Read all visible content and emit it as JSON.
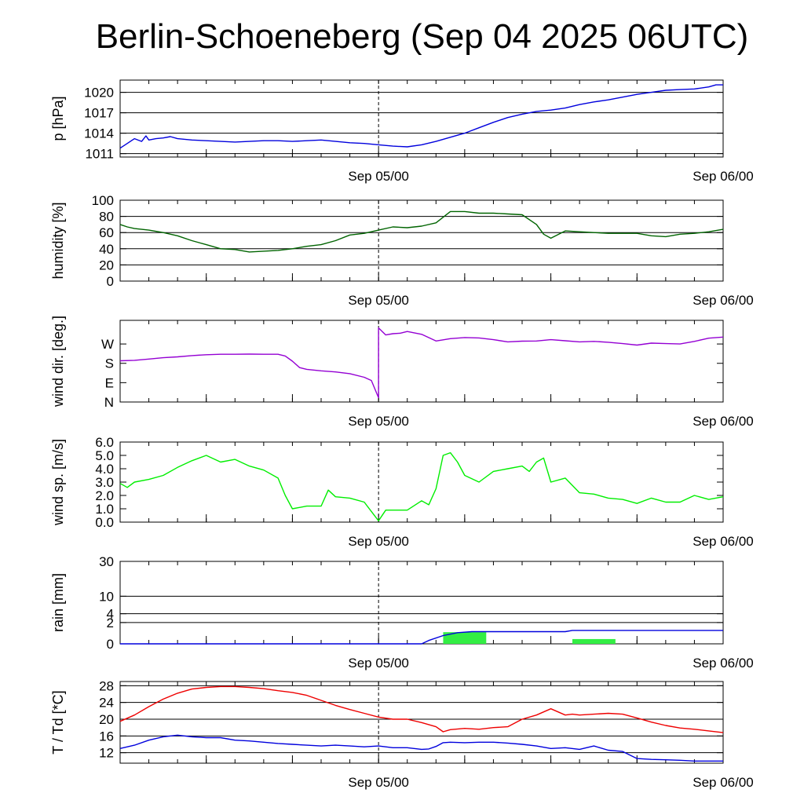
{
  "title": "Berlin-Schoeneberg (Sep 04 2025 06UTC)",
  "colors": {
    "pressure": "#0000dd",
    "humidity": "#006400",
    "wind_dir": "#9400d3",
    "wind_speed": "#00ee00",
    "rain_bar": "#33ee44",
    "rain_line": "#0000dd",
    "temperature": "#ee0000",
    "dewpoint": "#0000dd",
    "gridline": "#000000",
    "now_marker": "#000000"
  },
  "time_axis": {
    "start_hours": 0,
    "end_hours": 42,
    "now_hours": 18,
    "tick_labels": [
      {
        "hours": 18,
        "label": "Sep 05/00"
      },
      {
        "hours": 42,
        "label": "Sep 06/00"
      }
    ]
  },
  "chart_data": [
    {
      "type": "line",
      "id": "pressure",
      "ylabel": "p [hPa]",
      "ylim": [
        1010.5,
        1021.8
      ],
      "yticks": [
        {
          "value": 1011,
          "label": "1011"
        },
        {
          "value": 1014,
          "label": "1014"
        },
        {
          "value": 1017,
          "label": "1017"
        },
        {
          "value": 1020,
          "label": "1020"
        }
      ],
      "grid": true,
      "series": [
        {
          "color_key": "pressure",
          "x": [
            0,
            0.5,
            1,
            1.5,
            1.8,
            2,
            2.5,
            3,
            3.5,
            4,
            5,
            6,
            7,
            8,
            9,
            10,
            11,
            12,
            13,
            14,
            15,
            16,
            17,
            18,
            19,
            20,
            21,
            22,
            23,
            24,
            25,
            26,
            27,
            28,
            29,
            30,
            31,
            32,
            33,
            34,
            35,
            36,
            37,
            38,
            39,
            40,
            41,
            41.5,
            42
          ],
          "y": [
            1011.8,
            1012.5,
            1013.2,
            1012.8,
            1013.6,
            1013.0,
            1013.2,
            1013.3,
            1013.5,
            1013.2,
            1013.0,
            1012.9,
            1012.8,
            1012.7,
            1012.8,
            1012.9,
            1012.9,
            1012.8,
            1012.9,
            1013.0,
            1012.8,
            1012.6,
            1012.5,
            1012.3,
            1012.1,
            1012.0,
            1012.3,
            1012.8,
            1013.4,
            1014.0,
            1014.8,
            1015.6,
            1016.3,
            1016.8,
            1017.2,
            1017.4,
            1017.7,
            1018.2,
            1018.6,
            1018.9,
            1019.3,
            1019.7,
            1020.0,
            1020.3,
            1020.4,
            1020.5,
            1020.8,
            1021.1,
            1021.1
          ]
        }
      ]
    },
    {
      "type": "line",
      "id": "humidity",
      "ylabel": "humidity [%]",
      "ylim": [
        0,
        100
      ],
      "yticks": [
        {
          "value": 0,
          "label": "0"
        },
        {
          "value": 20,
          "label": "20"
        },
        {
          "value": 40,
          "label": "40"
        },
        {
          "value": 60,
          "label": "60"
        },
        {
          "value": 80,
          "label": "80"
        },
        {
          "value": 100,
          "label": "100"
        }
      ],
      "grid": true,
      "series": [
        {
          "color_key": "humidity",
          "x": [
            0,
            0.5,
            1,
            2,
            3,
            4,
            5,
            6,
            7,
            8,
            9,
            10,
            11,
            12,
            13,
            14,
            15,
            16,
            17,
            18,
            19,
            20,
            21,
            22,
            23,
            24,
            25,
            26,
            27,
            28,
            29,
            29.5,
            30,
            31,
            32,
            33,
            34,
            35,
            36,
            37,
            38,
            39,
            40,
            41,
            42
          ],
          "y": [
            70,
            67,
            65,
            63,
            60,
            56,
            50,
            45,
            40,
            39,
            36,
            37,
            38,
            40,
            43,
            45,
            50,
            57,
            59,
            63,
            67,
            66,
            68,
            72,
            86,
            86,
            84,
            84,
            83,
            82,
            70,
            58,
            53,
            62,
            61,
            60,
            59,
            59,
            59,
            56,
            55,
            58,
            59,
            61,
            64
          ]
        }
      ]
    },
    {
      "type": "line",
      "id": "wind_direction",
      "ylabel": "wind dir. [deg.]",
      "ylim": [
        0,
        380
      ],
      "yticks": [
        {
          "value": 0,
          "label": "N"
        },
        {
          "value": 90,
          "label": "E"
        },
        {
          "value": 180,
          "label": "S"
        },
        {
          "value": 270,
          "label": "W"
        }
      ],
      "grid": false,
      "series": [
        {
          "color_key": "wind_dir",
          "x": [
            0,
            1,
            2,
            3,
            4,
            5,
            6,
            7,
            8,
            9,
            10,
            11,
            11.5,
            12,
            12.5,
            13,
            14,
            15,
            16,
            17,
            17.5,
            18,
            18.0,
            18.5,
            19,
            19.5,
            20,
            21,
            22,
            23,
            24,
            25,
            26,
            27,
            28,
            29,
            30,
            31,
            32,
            33,
            34,
            35,
            36,
            37,
            38,
            39,
            40,
            41,
            42
          ],
          "y": [
            192,
            194,
            200,
            206,
            210,
            216,
            220,
            222,
            222,
            223,
            222,
            222,
            214,
            190,
            160,
            152,
            145,
            140,
            132,
            115,
            100,
            20,
            345,
            312,
            318,
            320,
            328,
            315,
            284,
            295,
            300,
            298,
            290,
            280,
            283,
            284,
            290,
            285,
            280,
            282,
            278,
            272,
            265,
            274,
            272,
            270,
            282,
            297,
            302
          ]
        }
      ]
    },
    {
      "type": "line",
      "id": "wind_speed",
      "ylabel": "wind sp. [m/s]",
      "ylim": [
        0,
        6.0
      ],
      "yticks": [
        {
          "value": 0,
          "label": "0.0"
        },
        {
          "value": 1,
          "label": "1.0"
        },
        {
          "value": 2,
          "label": "2.0"
        },
        {
          "value": 3,
          "label": "3.0"
        },
        {
          "value": 4,
          "label": "4.0"
        },
        {
          "value": 5,
          "label": "5.0"
        },
        {
          "value": 6,
          "label": "6.0"
        }
      ],
      "grid": false,
      "series": [
        {
          "color_key": "wind_speed",
          "x": [
            0,
            0.5,
            1,
            2,
            3,
            4,
            5,
            6,
            7,
            8,
            9,
            10,
            11,
            11.5,
            12,
            13,
            14,
            14.5,
            15,
            16,
            17,
            17.5,
            18,
            18.5,
            19,
            20,
            21,
            21.5,
            22,
            22.5,
            23,
            23.5,
            24,
            25,
            26,
            27,
            28,
            28.5,
            29,
            29.5,
            30,
            31,
            32,
            33,
            34,
            35,
            36,
            37,
            38,
            39,
            40,
            41,
            42
          ],
          "y": [
            2.9,
            2.6,
            3.0,
            3.2,
            3.5,
            4.1,
            4.6,
            5.0,
            4.5,
            4.7,
            4.2,
            3.9,
            3.3,
            2.0,
            1.0,
            1.2,
            1.2,
            2.4,
            1.9,
            1.8,
            1.5,
            0.8,
            0.1,
            0.9,
            0.9,
            0.9,
            1.6,
            1.3,
            2.5,
            5.0,
            5.2,
            4.5,
            3.5,
            3.0,
            3.8,
            4.0,
            4.2,
            3.8,
            4.5,
            4.8,
            3.0,
            3.3,
            2.2,
            2.1,
            1.8,
            1.7,
            1.4,
            1.8,
            1.5,
            1.5,
            2.0,
            1.7,
            1.9
          ]
        }
      ]
    },
    {
      "type": "bar",
      "id": "rain",
      "ylabel": "rain [mm]",
      "ylim": [
        0,
        30
      ],
      "scale": "sqrt",
      "yticks": [
        {
          "value": 0,
          "label": "0"
        },
        {
          "value": 2,
          "label": "2"
        },
        {
          "value": 4,
          "label": "4"
        },
        {
          "value": 10,
          "label": "10"
        },
        {
          "value": 30,
          "label": "30"
        }
      ],
      "grid": true,
      "bars": [
        {
          "x_start": 22.5,
          "x_end": 25.5,
          "value": 0.6
        },
        {
          "x_start": 31.5,
          "x_end": 34.5,
          "value": 0.1
        }
      ],
      "cumulative": {
        "color_key": "rain_line",
        "x": [
          0,
          21,
          21.5,
          22.5,
          23.5,
          24.5,
          30,
          31,
          31.5,
          42
        ],
        "y": [
          0,
          0,
          0.05,
          0.3,
          0.55,
          0.65,
          0.65,
          0.65,
          0.8,
          0.8
        ]
      }
    },
    {
      "type": "line",
      "id": "temperature",
      "ylabel": "T / Td [*C]",
      "ylim": [
        9.5,
        29
      ],
      "yticks": [
        {
          "value": 12,
          "label": "12"
        },
        {
          "value": 16,
          "label": "16"
        },
        {
          "value": 20,
          "label": "20"
        },
        {
          "value": 24,
          "label": "24"
        },
        {
          "value": 28,
          "label": "28"
        }
      ],
      "grid": true,
      "series": [
        {
          "color_key": "temperature",
          "x": [
            0,
            1,
            2,
            3,
            4,
            5,
            6,
            7,
            8,
            9,
            10,
            11,
            12,
            13,
            14,
            15,
            16,
            17,
            18,
            19,
            20,
            21,
            22,
            22.5,
            23,
            24,
            25,
            26,
            27,
            28,
            29,
            30,
            31,
            31.5,
            32,
            33,
            34,
            35,
            36,
            37,
            38,
            39,
            40,
            41,
            42
          ],
          "y": [
            19.5,
            21.0,
            23.0,
            24.8,
            26.2,
            27.2,
            27.6,
            27.8,
            27.8,
            27.6,
            27.3,
            26.8,
            26.4,
            25.7,
            24.5,
            23.3,
            22.3,
            21.4,
            20.5,
            20.0,
            20.0,
            19.2,
            18.2,
            17.0,
            17.5,
            17.8,
            17.6,
            18.0,
            18.2,
            20.0,
            21.0,
            22.5,
            21.0,
            21.2,
            21.0,
            21.2,
            21.4,
            21.2,
            20.3,
            19.3,
            18.5,
            17.9,
            17.6,
            17.2,
            16.8
          ]
        },
        {
          "color_key": "dewpoint",
          "x": [
            0,
            1,
            2,
            3,
            4,
            5,
            6,
            7,
            8,
            9,
            10,
            11,
            12,
            13,
            14,
            15,
            16,
            17,
            18,
            19,
            20,
            21,
            21.5,
            22,
            22.5,
            23,
            24,
            25,
            26,
            27,
            28,
            29,
            30,
            31,
            32,
            33,
            34,
            35,
            36,
            37,
            38,
            39,
            40,
            41,
            42
          ],
          "y": [
            13.0,
            13.8,
            15.0,
            15.8,
            16.2,
            15.8,
            15.6,
            15.6,
            15.0,
            14.8,
            14.5,
            14.2,
            14.0,
            13.8,
            13.6,
            13.8,
            13.6,
            13.4,
            13.6,
            13.2,
            13.2,
            12.8,
            12.9,
            13.5,
            14.4,
            14.5,
            14.4,
            14.5,
            14.5,
            14.3,
            14.0,
            13.6,
            13.0,
            13.2,
            12.8,
            13.6,
            12.6,
            12.3,
            10.6,
            10.4,
            10.3,
            10.2,
            10.0,
            10.0,
            10.0
          ]
        }
      ]
    }
  ]
}
